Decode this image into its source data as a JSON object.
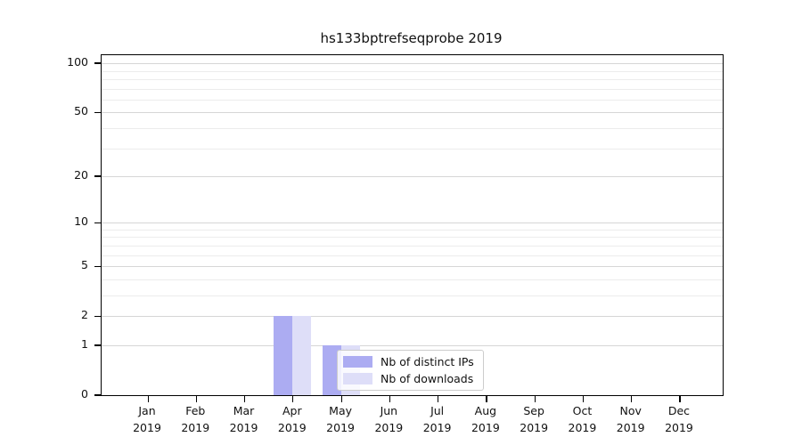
{
  "chart_data": {
    "type": "bar",
    "title": "hs133bptrefseqprobe 2019",
    "categories": [
      "Jan",
      "Feb",
      "Mar",
      "Apr",
      "May",
      "Jun",
      "Jul",
      "Aug",
      "Sep",
      "Oct",
      "Nov",
      "Dec"
    ],
    "year_label": "2019",
    "series": [
      {
        "name": "Nb of distinct IPs",
        "color": "#acacf2",
        "values": [
          0,
          0,
          0,
          2,
          1,
          0,
          0,
          0,
          0,
          0,
          0,
          0
        ]
      },
      {
        "name": "Nb of downloads",
        "color": "#dedef8",
        "values": [
          0,
          0,
          0,
          2,
          1,
          0,
          0,
          0,
          0,
          0,
          0,
          0
        ]
      }
    ],
    "yscale": "log10(1+x)",
    "ylim": [
      0,
      112
    ],
    "y_ticks": [
      0,
      1,
      2,
      5,
      10,
      20,
      50,
      100
    ],
    "y_minor_gridlines": [
      3,
      4,
      6,
      7,
      8,
      9,
      30,
      40,
      60,
      70,
      80,
      90
    ],
    "grid": "horizontal",
    "legend_position": "inside-lower-center-left",
    "background": "#ffffff",
    "axis_color": "#000000",
    "major_grid_color": "#d6d6d6",
    "minor_grid_color": "#ececec"
  }
}
